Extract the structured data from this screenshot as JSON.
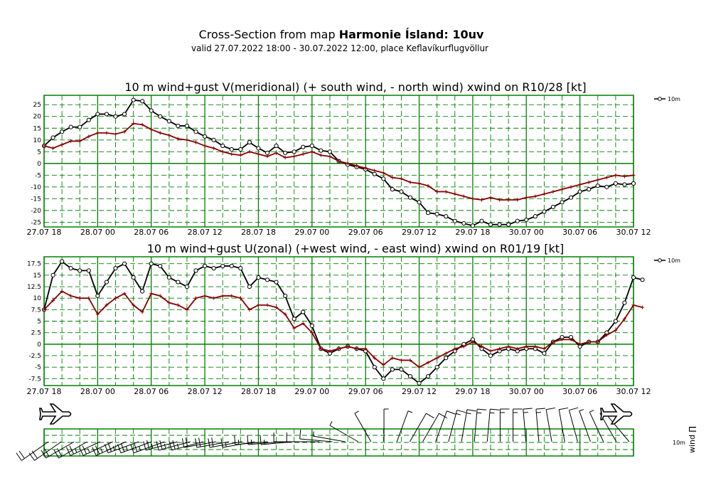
{
  "header": {
    "title_prefix": "Cross-Section from map ",
    "title_bold": "Harmonie Ísland: 10uv",
    "subtitle": "valid 27.07.2022 18:00 - 30.07.2022 12:00, place Keflavíkurflugvöllur"
  },
  "colors": {
    "wind": "#000000",
    "gust_series": "#8b0000",
    "grid": "#008000"
  },
  "icons": {
    "left": "airplane-icon",
    "right": "airplane-icon"
  },
  "chart_data": [
    {
      "type": "line",
      "title": "10 m wind+gust V(meridional) (+ south wind, - north wind) xwind on R10/28 [kt]",
      "xlabel": "",
      "ylabel": "",
      "xlim": [
        0,
        66
      ],
      "ylim": [
        -27,
        29
      ],
      "x_tick_labels": [
        "27.07 18",
        "28.07 00",
        "28.07 06",
        "28.07 12",
        "28.07 18",
        "29.07 00",
        "29.07 06",
        "29.07 12",
        "29.07 18",
        "30.07 00",
        "30.07 06",
        "30.07 12"
      ],
      "y_ticks": [
        25,
        20,
        15,
        10,
        5,
        0,
        -5,
        -10,
        -15,
        -20,
        -25
      ],
      "legend": [
        "10m"
      ],
      "legend_position": "right",
      "series": [
        {
          "name": "10m",
          "marker": "circle",
          "values": [
            7.5,
            11,
            13.5,
            15.5,
            15.5,
            18.5,
            21,
            21,
            20,
            21,
            27,
            26.5,
            22.5,
            20,
            18,
            16,
            16,
            13.5,
            11.5,
            10,
            7.5,
            6,
            6,
            9,
            6.5,
            4.5,
            7.5,
            4.5,
            5,
            7,
            7.5,
            5.5,
            5,
            1,
            -0.5,
            -1.5,
            -2.5,
            -4.5,
            -6.5,
            -11,
            -12,
            -14.5,
            -16.5,
            -21,
            -21.5,
            -22.5,
            -24.5,
            -25.5,
            -26.5,
            -24.5,
            -26,
            -26,
            -26,
            -24.5,
            -24,
            -22.5,
            -20.5,
            -18.5,
            -16.5,
            -14.5,
            -12,
            -11,
            -9.5,
            -10,
            -8.5,
            -9,
            -8.5
          ]
        },
        {
          "name": "gust",
          "marker": "plus",
          "values": [
            7.5,
            6.5,
            8,
            9.5,
            9.5,
            11.5,
            13,
            13,
            12.5,
            13.5,
            17,
            16.5,
            14.5,
            13,
            12,
            10.5,
            10,
            9,
            7.5,
            6.5,
            5,
            4,
            3.5,
            5,
            4,
            3,
            4.5,
            2.5,
            3,
            4,
            5,
            3.5,
            3,
            1,
            0,
            -1,
            -2,
            -3,
            -4,
            -6,
            -6.5,
            -8,
            -8.5,
            -9.5,
            -12,
            -12,
            -13,
            -14,
            -15,
            -15.5,
            -14.5,
            -15.5,
            -15.5,
            -15.5,
            -14.5,
            -14,
            -13,
            -12,
            -11,
            -10,
            -9,
            -8,
            -7,
            -6,
            -5,
            -5.5,
            -5
          ]
        }
      ]
    },
    {
      "type": "line",
      "title": "10 m wind+gust U(zonal) (+west wind, - east wind) xwind on R01/19 [kt]",
      "xlabel": "",
      "ylabel": "",
      "xlim": [
        0,
        66
      ],
      "ylim": [
        -9,
        19
      ],
      "x_tick_labels": [
        "27.07 18",
        "28.07 00",
        "28.07 06",
        "28.07 12",
        "28.07 18",
        "29.07 00",
        "29.07 06",
        "29.07 12",
        "29.07 18",
        "30.07 00",
        "30.07 06",
        "30.07 12"
      ],
      "y_ticks": [
        17.5,
        15,
        12.5,
        10,
        7.5,
        5,
        2.5,
        0,
        -2.5,
        -5,
        -7.5
      ],
      "legend": [
        "10m"
      ],
      "legend_position": "right",
      "series": [
        {
          "name": "10m",
          "marker": "circle",
          "values": [
            7.5,
            15,
            18,
            16.5,
            16,
            16,
            10.5,
            13.5,
            16.5,
            17.5,
            14.5,
            11.5,
            17.5,
            17,
            14.5,
            13.5,
            12.5,
            16,
            17,
            16.5,
            17,
            17,
            16.5,
            12.5,
            14.5,
            14,
            13.5,
            10.5,
            5.5,
            7,
            4,
            -1,
            -2,
            -1,
            -0.5,
            -1,
            -1.5,
            -5,
            -7.5,
            -5.5,
            -5.5,
            -7,
            -8.5,
            -7,
            -5,
            -3,
            -1.5,
            0,
            1,
            -1,
            -2.5,
            -1.5,
            -1,
            -1.5,
            -1,
            -1,
            -2,
            0.5,
            1.5,
            1.5,
            -0.5,
            0.5,
            0.5,
            2.5,
            5,
            9,
            14.5,
            14
          ]
        },
        {
          "name": "gust",
          "marker": "plus",
          "values": [
            7.5,
            9.5,
            11.5,
            10.5,
            10,
            10,
            6.5,
            8.5,
            10,
            11,
            8.5,
            7,
            11,
            10.5,
            9,
            8.5,
            7.5,
            10,
            10.5,
            10,
            10.5,
            10.5,
            10,
            7.5,
            8.5,
            8.5,
            8,
            6.5,
            3.5,
            4.5,
            2.5,
            -1,
            -1.5,
            -1,
            -0.5,
            -1,
            -1,
            -3,
            -4.5,
            -3,
            -3.5,
            -3.5,
            -5,
            -4,
            -3,
            -2,
            -1,
            -0.5,
            0.5,
            -0.5,
            -1.5,
            -1,
            -0.5,
            -1,
            -0.5,
            -0.5,
            -1,
            0.5,
            1,
            1,
            0,
            0.5,
            0.5,
            2,
            3,
            5.5,
            8.5,
            8
          ]
        }
      ]
    },
    {
      "type": "table",
      "title": "wind barbs",
      "label": "10m",
      "label_rotated": "wind ∏",
      "x_tick_labels": [],
      "barbs": [
        {
          "dir": 235,
          "spd": 20
        },
        {
          "dir": 235,
          "spd": 20
        },
        {
          "dir": 240,
          "spd": 20
        },
        {
          "dir": 240,
          "spd": 20
        },
        {
          "dir": 245,
          "spd": 25
        },
        {
          "dir": 245,
          "spd": 25
        },
        {
          "dir": 245,
          "spd": 25
        },
        {
          "dir": 250,
          "spd": 25
        },
        {
          "dir": 250,
          "spd": 25
        },
        {
          "dir": 250,
          "spd": 25
        },
        {
          "dir": 255,
          "spd": 25
        },
        {
          "dir": 255,
          "spd": 25
        },
        {
          "dir": 255,
          "spd": 25
        },
        {
          "dir": 260,
          "spd": 20
        },
        {
          "dir": 260,
          "spd": 20
        },
        {
          "dir": 260,
          "spd": 20
        },
        {
          "dir": 260,
          "spd": 15
        },
        {
          "dir": 265,
          "spd": 15
        },
        {
          "dir": 265,
          "spd": 15
        },
        {
          "dir": 265,
          "spd": 15
        },
        {
          "dir": 270,
          "spd": 10
        },
        {
          "dir": 270,
          "spd": 10
        },
        {
          "dir": 275,
          "spd": 10
        },
        {
          "dir": 280,
          "spd": 5
        },
        {
          "dir": 300,
          "spd": 5
        },
        {
          "dir": 330,
          "spd": 5
        },
        {
          "dir": 0,
          "spd": 5
        },
        {
          "dir": 20,
          "spd": 5
        },
        {
          "dir": 30,
          "spd": 10
        },
        {
          "dir": 30,
          "spd": 10
        },
        {
          "dir": 20,
          "spd": 10
        },
        {
          "dir": 15,
          "spd": 15
        },
        {
          "dir": 10,
          "spd": 15
        },
        {
          "dir": 5,
          "spd": 15
        },
        {
          "dir": 5,
          "spd": 15
        },
        {
          "dir": 0,
          "spd": 15
        },
        {
          "dir": 0,
          "spd": 15
        },
        {
          "dir": 355,
          "spd": 15
        },
        {
          "dir": 355,
          "spd": 15
        },
        {
          "dir": 350,
          "spd": 10
        },
        {
          "dir": 350,
          "spd": 10
        },
        {
          "dir": 345,
          "spd": 10
        },
        {
          "dir": 340,
          "spd": 5
        },
        {
          "dir": 335,
          "spd": 5
        },
        {
          "dir": 330,
          "spd": 5
        },
        {
          "dir": 320,
          "spd": 5
        }
      ]
    }
  ]
}
